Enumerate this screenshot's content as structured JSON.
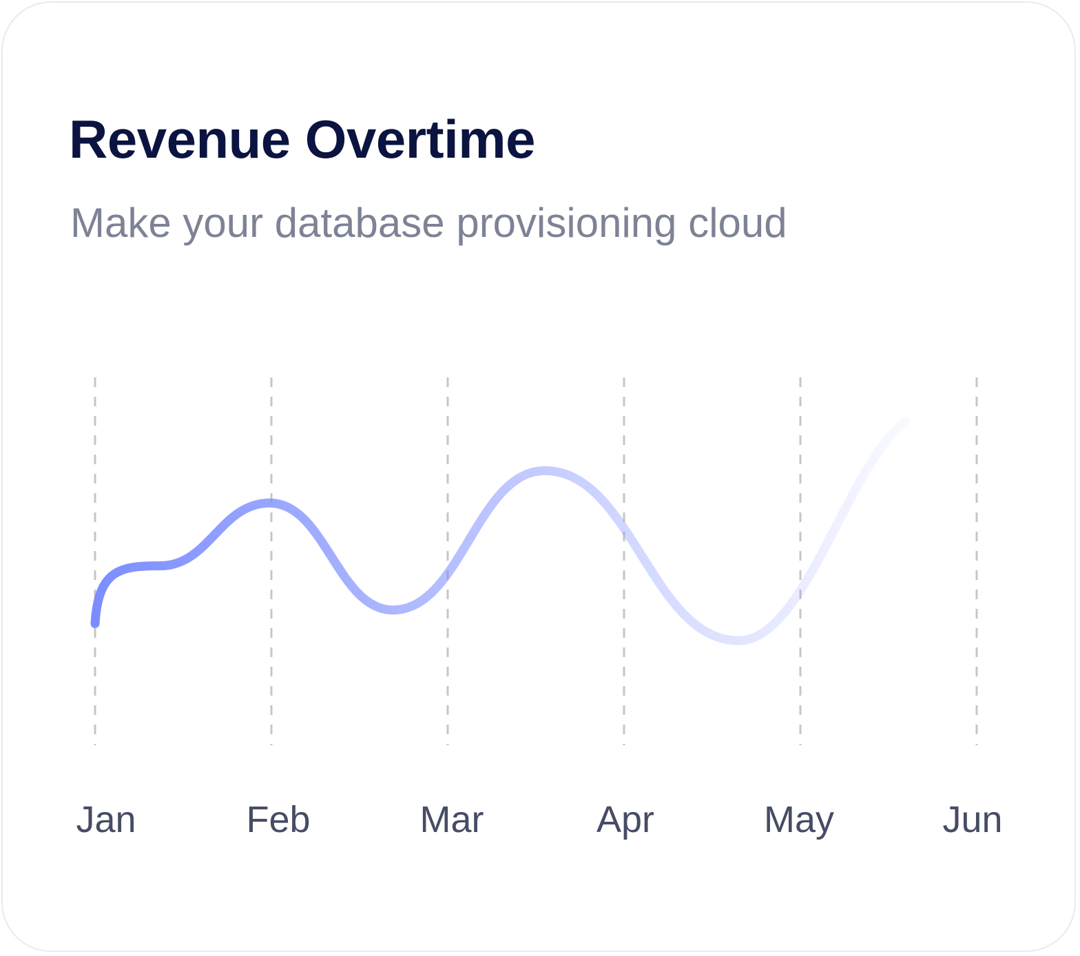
{
  "card": {
    "title": "Revenue Overtime",
    "subtitle": "Make your database provisioning cloud"
  },
  "colors": {
    "title": "#0b1340",
    "subtitle": "#7d8395",
    "line_start": "#7b8cff",
    "line_end": "#ffffff",
    "grid": "#c6c6c6",
    "tick_label": "#464c64"
  },
  "chart_data": {
    "type": "line",
    "categories": [
      "Jan",
      "Feb",
      "Mar",
      "Apr",
      "May",
      "Jun"
    ],
    "x": [
      1.0,
      1.37,
      1.99,
      2.69,
      3.55,
      4.65,
      5.6
    ],
    "values": [
      12,
      46,
      83,
      20,
      102,
      2,
      131
    ],
    "ylim": [
      0,
      150
    ],
    "grid": "vertical-dashed",
    "legend": "none",
    "line_style": "smooth, fading gradient left to right"
  }
}
